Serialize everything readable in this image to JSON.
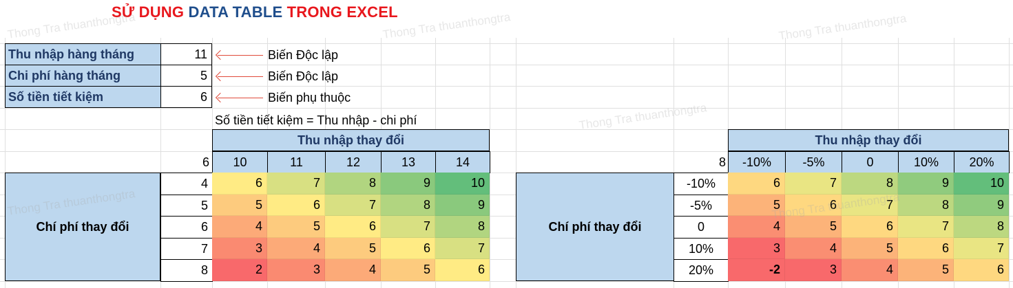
{
  "title": {
    "part1": "SỬ DỤNG ",
    "part2": "DATA TABLE ",
    "part3": "TRONG EXCEL"
  },
  "inputs": [
    {
      "label": "Thu nhập hàng tháng",
      "value": "11",
      "note": "Biến Độc lập"
    },
    {
      "label": "Chi phí hàng tháng",
      "value": "5",
      "note": "Biến Độc lập"
    },
    {
      "label": "Số tiền tiết kiệm",
      "value": "6",
      "note": "Biến phụ thuộc"
    }
  ],
  "formula_note": "Số tiền tiết kiệm = Thu nhập - chi phí",
  "table1": {
    "header": "Thu nhập thay đổi",
    "corner": "6",
    "columns": [
      "10",
      "11",
      "12",
      "13",
      "14"
    ],
    "side_label": "Chí phí thay đổi",
    "rows": [
      "4",
      "5",
      "6",
      "7",
      "8"
    ],
    "values": [
      [
        "6",
        "7",
        "8",
        "9",
        "10"
      ],
      [
        "5",
        "6",
        "7",
        "8",
        "9"
      ],
      [
        "4",
        "5",
        "6",
        "7",
        "8"
      ],
      [
        "3",
        "4",
        "5",
        "6",
        "7"
      ],
      [
        "2",
        "3",
        "4",
        "5",
        "6"
      ]
    ]
  },
  "table2": {
    "header": "Thu nhập thay đổi",
    "corner": "8",
    "columns": [
      "-10%",
      "-5%",
      "0",
      "10%",
      "20%"
    ],
    "side_label": "Chí phí thay đổi",
    "rows": [
      "-10%",
      "-5%",
      "0",
      "10%",
      "20%"
    ],
    "values": [
      [
        "6",
        "7",
        "8",
        "9",
        "10"
      ],
      [
        "5",
        "6",
        "7",
        "8",
        "9"
      ],
      [
        "4",
        "5",
        "6",
        "7",
        "8"
      ],
      [
        "3",
        "4",
        "5",
        "6",
        "7"
      ],
      [
        "-2",
        "3",
        "4",
        "5",
        "6"
      ]
    ]
  },
  "colors": {
    "title_red": "#e8171d",
    "title_blue": "#1f4e8c",
    "label_fill": "#bdd7ee",
    "scale_low": "#f8696b",
    "scale_mid": "#ffeb84",
    "scale_high": "#63be7b"
  }
}
